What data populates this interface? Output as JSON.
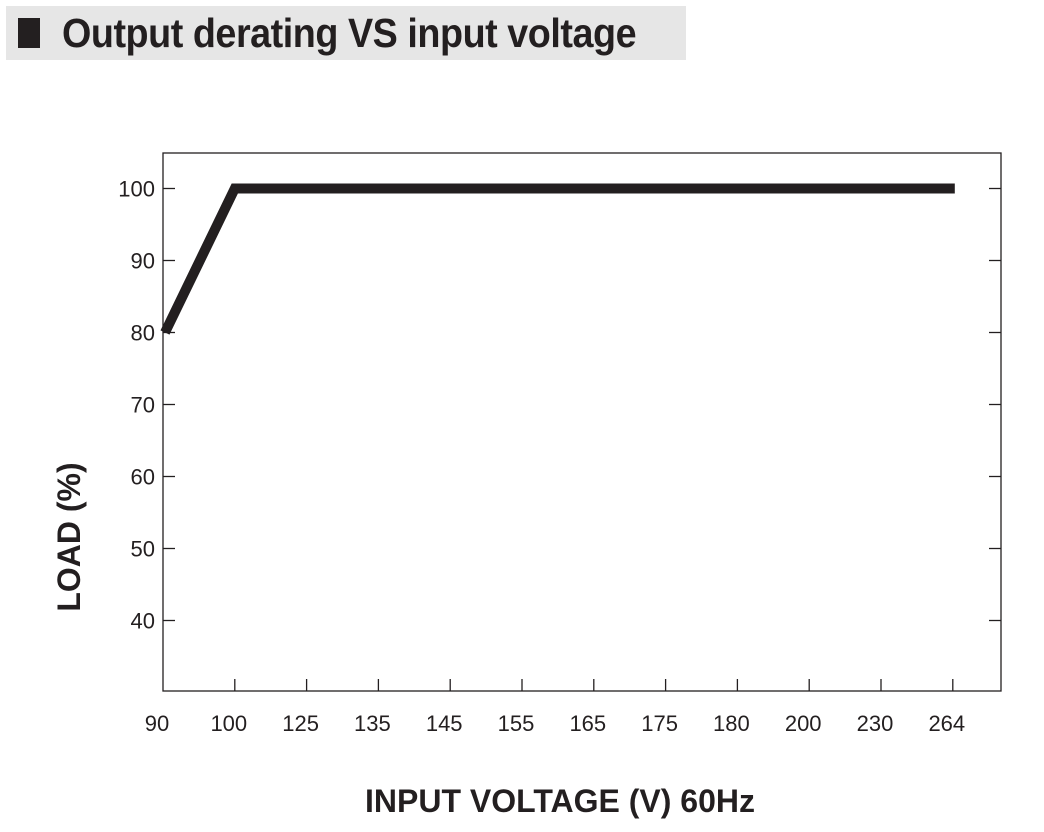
{
  "title": "Output derating VS input voltage",
  "chart_data": {
    "type": "line",
    "title": "Output derating VS input voltage",
    "xlabel": "INPUT VOLTAGE (V) 60Hz",
    "ylabel": "LOAD (%)",
    "x_categories": [
      "90",
      "100",
      "125",
      "135",
      "145",
      "155",
      "165",
      "175",
      "180",
      "200",
      "230",
      "264"
    ],
    "y_ticks": [
      40,
      50,
      60,
      70,
      80,
      90,
      100
    ],
    "ylim": [
      30,
      105
    ],
    "series": [
      {
        "x": [
          "90",
          "100",
          "264"
        ],
        "y": [
          80,
          100,
          100
        ]
      }
    ],
    "grid": false,
    "line_color": "#231f20"
  }
}
